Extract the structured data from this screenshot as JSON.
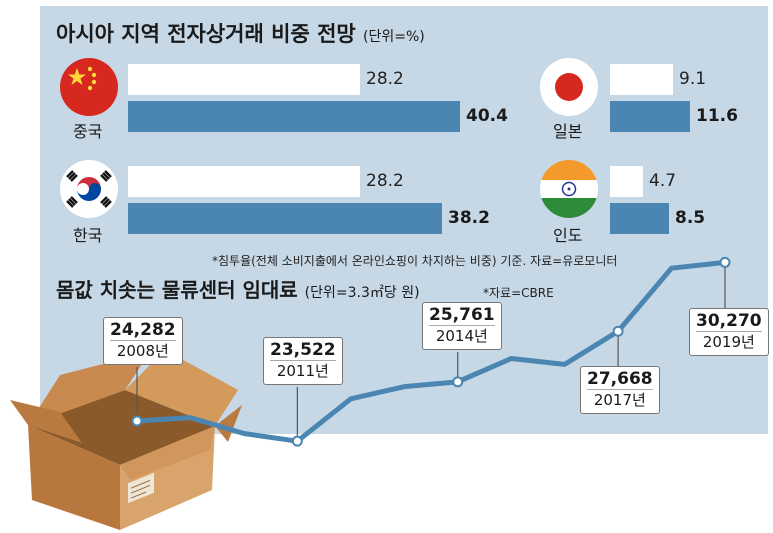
{
  "top_title": "아시아 지역 전자상거래 비중 전망",
  "top_unit": "(단위=%)",
  "top_note": "*침투율(전체 소비지출에서 온라인쇼핑이 차지하는 비중) 기준. 자료=유로모니터",
  "bottom_title": "몸값 치솟는 물류센터 임대료",
  "bottom_unit": "(단위=3.3㎡당 원)",
  "bottom_source": "*자료=CBRE",
  "colors": {
    "panel": "#c6d8e6",
    "bar_blue": "#4a86b1",
    "bar_white": "#ffffff",
    "line": "#4a86b1"
  },
  "chart_data": [
    {
      "type": "bar",
      "title": "아시아 지역 전자상거래 비중 전망",
      "unit": "(단위=%)",
      "categories": [
        "중국",
        "일본",
        "한국",
        "인도"
      ],
      "series": [
        {
          "values": [
            28.2,
            9.1,
            28.2,
            4.7
          ],
          "labels": [
            "28.2",
            "9.1",
            "28.2",
            "4.7"
          ]
        },
        {
          "values": [
            40.4,
            11.6,
            38.2,
            8.5
          ],
          "labels": [
            "40.4",
            "11.6",
            "38.2",
            "8.5"
          ]
        }
      ],
      "note": "*침투율(전체 소비지출에서 온라인쇼핑이 차지하는 비중) 기준. 자료=유로모니터"
    },
    {
      "type": "line",
      "title": "몸값 치솟는 물류센터 임대료",
      "unit": "(단위=3.3㎡당 원)",
      "source": "*자료=CBRE",
      "x": [
        2008,
        2009,
        2010,
        2011,
        2012,
        2013,
        2014,
        2015,
        2016,
        2017,
        2018,
        2019
      ],
      "values": [
        24282,
        24410,
        23810,
        23522,
        25120,
        25580,
        25761,
        26640,
        26420,
        27668,
        30050,
        30270
      ],
      "labeled_points": [
        {
          "x": 2008,
          "value": "24,282",
          "year": "2008년"
        },
        {
          "x": 2011,
          "value": "23,522",
          "year": "2011년"
        },
        {
          "x": 2014,
          "value": "25,761",
          "year": "2014년"
        },
        {
          "x": 2017,
          "value": "27,668",
          "year": "2017년"
        },
        {
          "x": 2019,
          "value": "30,270",
          "year": "2019년"
        }
      ]
    }
  ]
}
